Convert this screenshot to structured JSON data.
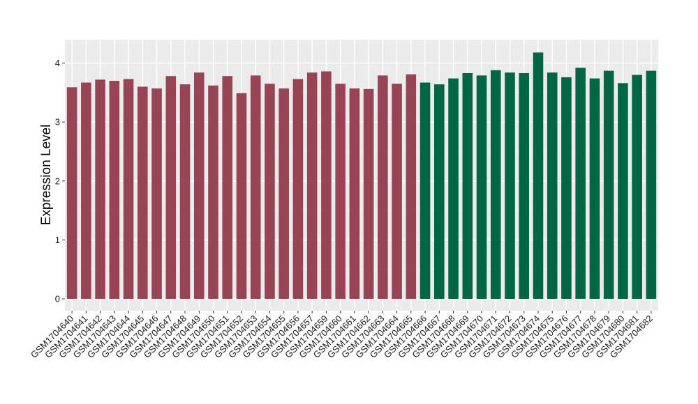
{
  "chart_data": {
    "type": "bar",
    "title": "",
    "xlabel": "",
    "ylabel": "Expression Level",
    "ylim": [
      0,
      4.38
    ],
    "yticks": [
      0,
      1,
      2,
      3,
      4
    ],
    "grid": true,
    "background": "#ebebeb",
    "colors": {
      "group1": "#994455",
      "group2": "#006644"
    },
    "categories": [
      "GSM1704640",
      "GSM1704641",
      "GSM1704642",
      "GSM1704643",
      "GSM1704644",
      "GSM1704645",
      "GSM1704646",
      "GSM1704647",
      "GSM1704648",
      "GSM1704649",
      "GSM1704650",
      "GSM1704651",
      "GSM1704652",
      "GSM1704653",
      "GSM1704654",
      "GSM1704655",
      "GSM1704656",
      "GSM1704657",
      "GSM1704659",
      "GSM1704660",
      "GSM1704661",
      "GSM1704662",
      "GSM1704663",
      "GSM1704664",
      "GSM1704665",
      "GSM1704666",
      "GSM1704667",
      "GSM1704668",
      "GSM1704669",
      "GSM1704670",
      "GSM1704671",
      "GSM1704672",
      "GSM1704673",
      "GSM1704674",
      "GSM1704675",
      "GSM1704676",
      "GSM1704677",
      "GSM1704678",
      "GSM1704679",
      "GSM1704680",
      "GSM1704681",
      "GSM1704682"
    ],
    "values": [
      3.59,
      3.67,
      3.72,
      3.7,
      3.73,
      3.6,
      3.57,
      3.78,
      3.64,
      3.84,
      3.62,
      3.78,
      3.49,
      3.79,
      3.65,
      3.57,
      3.73,
      3.84,
      3.86,
      3.65,
      3.57,
      3.56,
      3.79,
      3.65,
      3.81,
      3.67,
      3.64,
      3.74,
      3.83,
      3.79,
      3.88,
      3.84,
      3.83,
      4.18,
      3.84,
      3.76,
      3.92,
      3.74,
      3.87,
      3.66,
      3.8,
      3.87
    ],
    "groups": [
      "group1",
      "group1",
      "group1",
      "group1",
      "group1",
      "group1",
      "group1",
      "group1",
      "group1",
      "group1",
      "group1",
      "group1",
      "group1",
      "group1",
      "group1",
      "group1",
      "group1",
      "group1",
      "group1",
      "group1",
      "group1",
      "group1",
      "group1",
      "group1",
      "group1",
      "group2",
      "group2",
      "group2",
      "group2",
      "group2",
      "group2",
      "group2",
      "group2",
      "group2",
      "group2",
      "group2",
      "group2",
      "group2",
      "group2",
      "group2",
      "group2",
      "group2"
    ]
  }
}
